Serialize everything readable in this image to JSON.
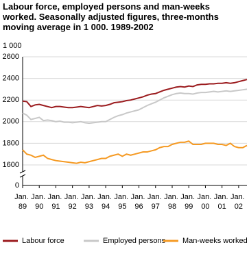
{
  "chart_data": {
    "type": "line",
    "title": "Labour force, employed persons and man-weeks worked. Seasonally adjusted figures, three-months moving average in 1 000. 1989-2002",
    "ylabel": "1 000",
    "x": [
      1989,
      1989.25,
      1989.5,
      1989.75,
      1990,
      1990.25,
      1990.5,
      1990.75,
      1991,
      1991.25,
      1991.5,
      1991.75,
      1992,
      1992.25,
      1992.5,
      1992.75,
      1993,
      1993.25,
      1993.5,
      1993.75,
      1994,
      1994.25,
      1994.5,
      1994.75,
      1995,
      1995.25,
      1995.5,
      1995.75,
      1996,
      1996.25,
      1996.5,
      1996.75,
      1997,
      1997.25,
      1997.5,
      1997.75,
      1998,
      1998.25,
      1998.5,
      1998.75,
      1999,
      1999.25,
      1999.5,
      1999.75,
      2000,
      2000.25,
      2000.5,
      2000.75,
      2001,
      2001.25,
      2001.5,
      2001.75,
      2002,
      2002.25,
      2002.5
    ],
    "series": [
      {
        "name": "Labour force",
        "color": "#9b1b1e",
        "values": [
          2190,
          2185,
          2140,
          2155,
          2160,
          2150,
          2140,
          2130,
          2140,
          2140,
          2135,
          2130,
          2130,
          2135,
          2140,
          2135,
          2130,
          2140,
          2150,
          2145,
          2150,
          2160,
          2175,
          2180,
          2185,
          2195,
          2200,
          2210,
          2220,
          2230,
          2245,
          2255,
          2260,
          2275,
          2290,
          2300,
          2310,
          2320,
          2325,
          2320,
          2330,
          2325,
          2340,
          2345,
          2345,
          2350,
          2350,
          2355,
          2355,
          2360,
          2355,
          2360,
          2370,
          2380,
          2390
        ]
      },
      {
        "name": "Employed persons",
        "color": "#c8c8c8",
        "values": [
          2080,
          2060,
          2020,
          2030,
          2040,
          2010,
          2015,
          2010,
          2000,
          2005,
          1995,
          1995,
          1990,
          1995,
          2000,
          1990,
          1985,
          1990,
          1995,
          2000,
          2000,
          2020,
          2040,
          2055,
          2065,
          2080,
          2090,
          2100,
          2110,
          2130,
          2150,
          2165,
          2180,
          2200,
          2220,
          2235,
          2250,
          2260,
          2265,
          2260,
          2260,
          2255,
          2265,
          2270,
          2270,
          2275,
          2280,
          2275,
          2280,
          2285,
          2280,
          2285,
          2290,
          2295,
          2300
        ]
      },
      {
        "name": "Man-weeks worked",
        "color": "#f59a23",
        "values": [
          1740,
          1700,
          1690,
          1670,
          1680,
          1690,
          1660,
          1650,
          1640,
          1635,
          1630,
          1625,
          1620,
          1615,
          1625,
          1620,
          1630,
          1640,
          1650,
          1660,
          1660,
          1680,
          1690,
          1700,
          1680,
          1700,
          1690,
          1700,
          1710,
          1720,
          1720,
          1730,
          1740,
          1760,
          1770,
          1770,
          1790,
          1800,
          1810,
          1810,
          1820,
          1790,
          1790,
          1790,
          1800,
          1800,
          1800,
          1790,
          1790,
          1780,
          1800,
          1770,
          1760,
          1760,
          1780
        ]
      }
    ],
    "xlim": [
      1989,
      2002.5
    ],
    "xticks": [
      {
        "value": 1989,
        "label": "Jan. 89"
      },
      {
        "value": 1990,
        "label": "Jan. 90"
      },
      {
        "value": 1991,
        "label": "Jan. 91"
      },
      {
        "value": 1992,
        "label": "Jan. 92"
      },
      {
        "value": 1993,
        "label": "Jan. 93"
      },
      {
        "value": 1994,
        "label": "Jan. 94"
      },
      {
        "value": 1995,
        "label": "Jan. 95"
      },
      {
        "value": 1996,
        "label": "Jan. 96"
      },
      {
        "value": 1997,
        "label": "Jan. 97"
      },
      {
        "value": 1998,
        "label": "Jan. 98"
      },
      {
        "value": 1999,
        "label": "Jan. 99"
      },
      {
        "value": 2000,
        "label": "Jan. 00"
      },
      {
        "value": 2001,
        "label": "Jan. 01"
      },
      {
        "value": 2002,
        "label": "Jan. 02"
      }
    ],
    "ylim": [
      0,
      2600
    ],
    "yticks": [
      0,
      1600,
      1800,
      2000,
      2200,
      2400,
      2600
    ],
    "y_axis_break": true,
    "grid": true,
    "legend": "bottom"
  }
}
